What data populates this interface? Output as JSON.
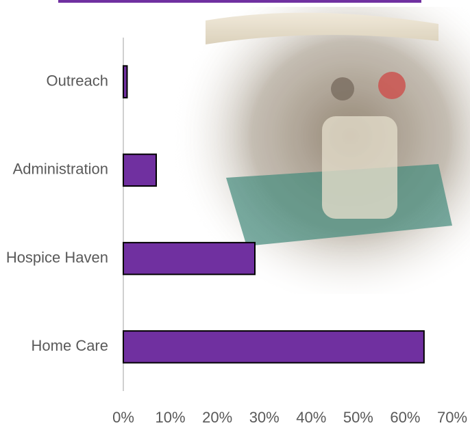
{
  "chart_data": {
    "type": "bar",
    "orientation": "horizontal",
    "categories": [
      "Outreach",
      "Administration",
      "Hospice Haven",
      "Home Care"
    ],
    "values": [
      0.8,
      7,
      28,
      64
    ],
    "color": "#7030a0",
    "xlim": [
      0,
      70
    ],
    "xticks": [
      {
        "value": 0,
        "label": "0%"
      },
      {
        "value": 10,
        "label": "10%"
      },
      {
        "value": 20,
        "label": "20%"
      },
      {
        "value": 30,
        "label": "30%"
      },
      {
        "value": 40,
        "label": "40%"
      },
      {
        "value": 50,
        "label": "50%"
      },
      {
        "value": 60,
        "label": "60%"
      },
      {
        "value": 70,
        "label": "70%"
      }
    ],
    "grid": false
  }
}
